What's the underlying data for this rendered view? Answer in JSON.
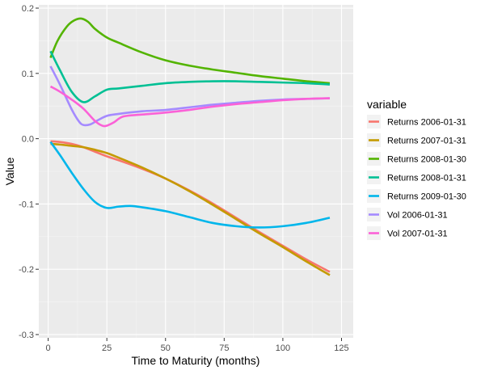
{
  "chart_data": {
    "type": "line",
    "title": "",
    "xlabel": "Time to Maturity (months)",
    "ylabel": "Value",
    "xlim": [
      -4,
      130
    ],
    "ylim": [
      -0.305,
      0.205
    ],
    "xticks": [
      0,
      25,
      50,
      75,
      100,
      125
    ],
    "yticks": [
      -0.3,
      -0.2,
      -0.1,
      0.0,
      0.1,
      0.2
    ],
    "ytick_labels": [
      "-0.3",
      "-0.2",
      "-0.1",
      "0.0",
      "0.1",
      "0.2"
    ],
    "grid": true,
    "legend": {
      "title": "variable",
      "placement": "right"
    },
    "series": [
      {
        "name": "Returns 2006-01-31",
        "color": "#F8766D",
        "x": [
          1,
          5,
          10,
          15,
          20,
          25,
          30,
          40,
          50,
          60,
          70,
          80,
          90,
          100,
          110,
          120
        ],
        "y": [
          -0.004,
          -0.005,
          -0.008,
          -0.013,
          -0.02,
          -0.027,
          -0.033,
          -0.046,
          -0.061,
          -0.079,
          -0.099,
          -0.121,
          -0.143,
          -0.164,
          -0.185,
          -0.204
        ]
      },
      {
        "name": "Returns 2007-01-31",
        "color": "#C49A00",
        "x": [
          1,
          5,
          10,
          15,
          20,
          25,
          30,
          40,
          50,
          60,
          70,
          80,
          90,
          100,
          110,
          120
        ],
        "y": [
          -0.008,
          -0.009,
          -0.011,
          -0.013,
          -0.017,
          -0.022,
          -0.029,
          -0.044,
          -0.061,
          -0.08,
          -0.101,
          -0.123,
          -0.145,
          -0.166,
          -0.188,
          -0.209
        ]
      },
      {
        "name": "Returns 2008-01-30",
        "color": "#53B400",
        "x": [
          1,
          4,
          8,
          11,
          14,
          17,
          20,
          25,
          30,
          40,
          50,
          60,
          70,
          80,
          90,
          100,
          110,
          120
        ],
        "y": [
          0.124,
          0.15,
          0.172,
          0.181,
          0.184,
          0.179,
          0.168,
          0.155,
          0.147,
          0.132,
          0.12,
          0.112,
          0.106,
          0.101,
          0.096,
          0.092,
          0.088,
          0.085
        ]
      },
      {
        "name": "Returns 2008-01-31",
        "color": "#00C094",
        "x": [
          1,
          5,
          10,
          15,
          20,
          25,
          30,
          40,
          50,
          60,
          70,
          80,
          90,
          100,
          110,
          120
        ],
        "y": [
          0.134,
          0.105,
          0.072,
          0.056,
          0.065,
          0.075,
          0.077,
          0.081,
          0.085,
          0.087,
          0.088,
          0.088,
          0.087,
          0.086,
          0.085,
          0.083
        ]
      },
      {
        "name": "Returns 2009-01-30",
        "color": "#00B6EB",
        "x": [
          1,
          5,
          10,
          15,
          20,
          25,
          30,
          35,
          40,
          50,
          60,
          70,
          80,
          90,
          100,
          110,
          120
        ],
        "y": [
          -0.005,
          -0.025,
          -0.052,
          -0.077,
          -0.097,
          -0.106,
          -0.104,
          -0.103,
          -0.105,
          -0.111,
          -0.12,
          -0.129,
          -0.134,
          -0.136,
          -0.134,
          -0.129,
          -0.121
        ]
      },
      {
        "name": "Vol 2006-01-31",
        "color": "#A58AFF",
        "x": [
          1,
          5,
          10,
          13,
          15,
          18,
          21,
          25,
          30,
          40,
          50,
          60,
          70,
          80,
          90,
          100,
          110,
          120
        ],
        "y": [
          0.111,
          0.083,
          0.045,
          0.027,
          0.021,
          0.022,
          0.028,
          0.035,
          0.038,
          0.042,
          0.044,
          0.048,
          0.052,
          0.055,
          0.058,
          0.06,
          0.061,
          0.062
        ]
      },
      {
        "name": "Vol 2007-01-31",
        "color": "#FB61D7",
        "x": [
          1,
          5,
          10,
          15,
          20,
          23,
          25,
          28,
          32,
          40,
          50,
          60,
          70,
          80,
          90,
          100,
          110,
          120
        ],
        "y": [
          0.08,
          0.072,
          0.06,
          0.046,
          0.027,
          0.02,
          0.02,
          0.025,
          0.034,
          0.037,
          0.04,
          0.044,
          0.049,
          0.053,
          0.056,
          0.059,
          0.061,
          0.062
        ]
      }
    ]
  }
}
